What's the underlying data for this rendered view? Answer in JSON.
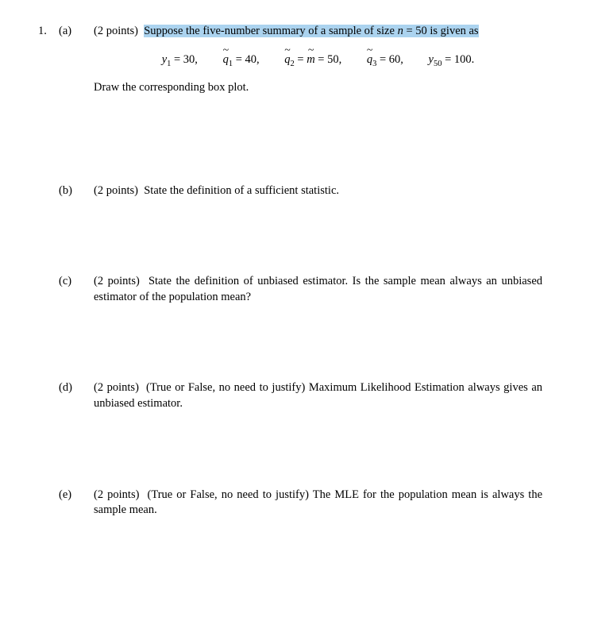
{
  "problem_number": "1.",
  "highlight_bg": "#abd3ef",
  "font_family": "Georgia, 'Times New Roman', serif",
  "font_size_pt": 11,
  "text_color": "#000000",
  "parts": {
    "a": {
      "label": "(a)",
      "points": "(2 points)",
      "intro_pre": "Suppose the five-number summary of a sample of size ",
      "intro_n": "n",
      "intro_eq": " = 50 is given as",
      "eq": {
        "y1_lhs": "y",
        "y1_sub": "1",
        "y1_rhs": " = 30,",
        "q1_lhs": "q",
        "q1_sub": "1",
        "q1_rhs": " = 40,",
        "q2_lhs": "q",
        "q2_sub": "2",
        "q2_mid": " = ",
        "q2_m": "m",
        "q2_rhs": " = 50,",
        "q3_lhs": "q",
        "q3_sub": "3",
        "q3_rhs": " = 60,",
        "y50_lhs": "y",
        "y50_sub": "50",
        "y50_rhs": " = 100."
      },
      "after": "Draw the corresponding box plot."
    },
    "b": {
      "label": "(b)",
      "points": "(2 points)",
      "text": "State the definition of a sufficient statistic."
    },
    "c": {
      "label": "(c)",
      "points": "(2 points)",
      "text": "State the definition of unbiased estimator. Is the sample mean always an unbiased estimator of the population mean?"
    },
    "d": {
      "label": "(d)",
      "points": "(2 points)",
      "text": "(True or False, no need to justify) Maximum Likelihood Estimation always gives an unbiased estimator."
    },
    "e": {
      "label": "(e)",
      "points": "(2 points)",
      "text": "(True or False, no need to justify) The MLE for the population mean is always the sample mean."
    }
  }
}
